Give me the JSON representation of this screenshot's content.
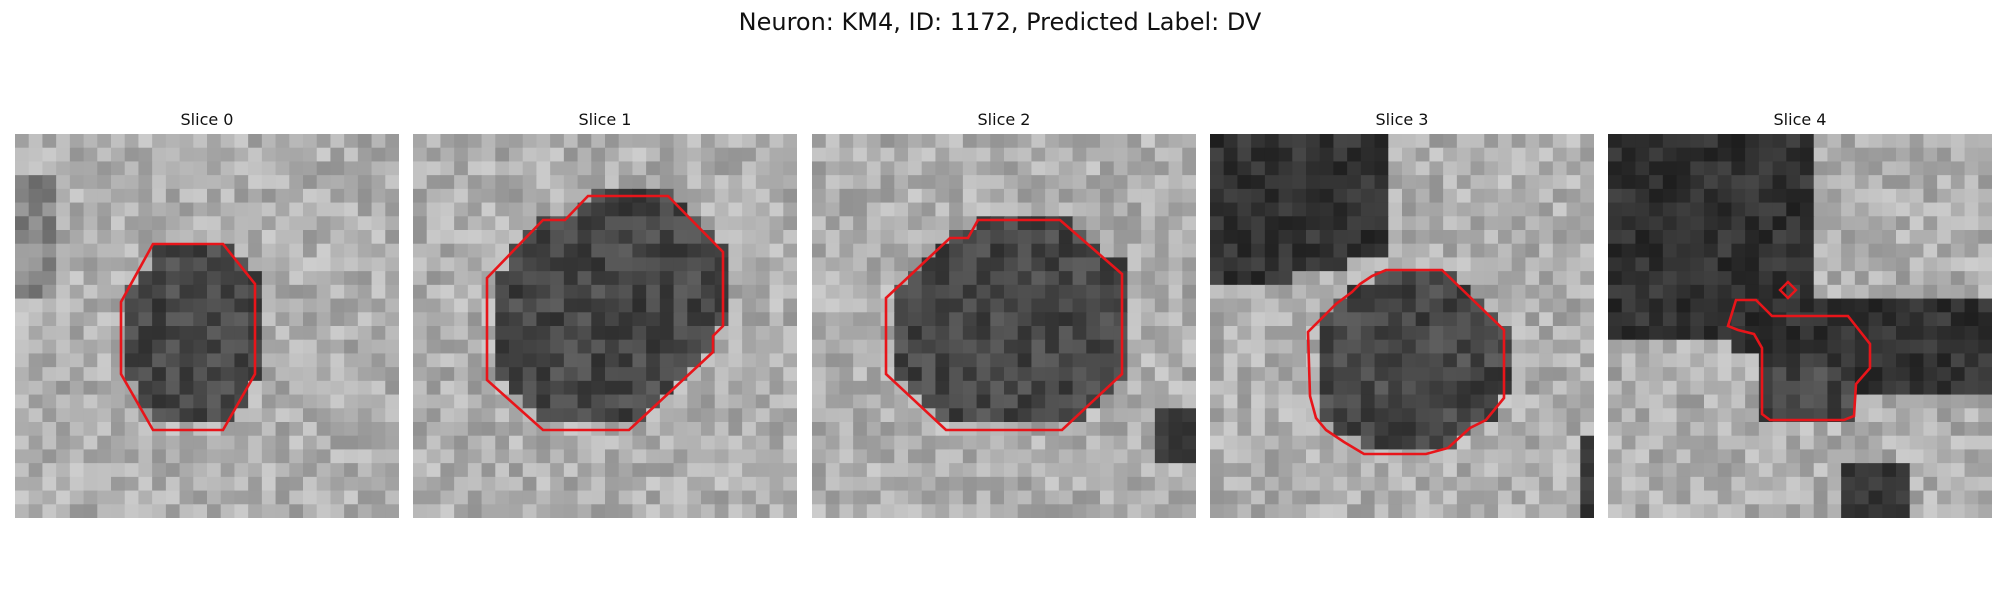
{
  "figure": {
    "title": "Neuron: KM4, ID: 1172, Predicted Label: DV"
  },
  "panels": [
    {
      "title": "Slice 0",
      "image": "grayscale-microscopy-slice",
      "contour_color": "#e8151a"
    },
    {
      "title": "Slice 1",
      "image": "grayscale-microscopy-slice",
      "contour_color": "#e8151a"
    },
    {
      "title": "Slice 2",
      "image": "grayscale-microscopy-slice",
      "contour_color": "#e8151a"
    },
    {
      "title": "Slice 3",
      "image": "grayscale-microscopy-slice",
      "contour_color": "#e8151a"
    },
    {
      "title": "Slice 4",
      "image": "grayscale-microscopy-slice",
      "contour_color": "#e8151a"
    }
  ]
}
